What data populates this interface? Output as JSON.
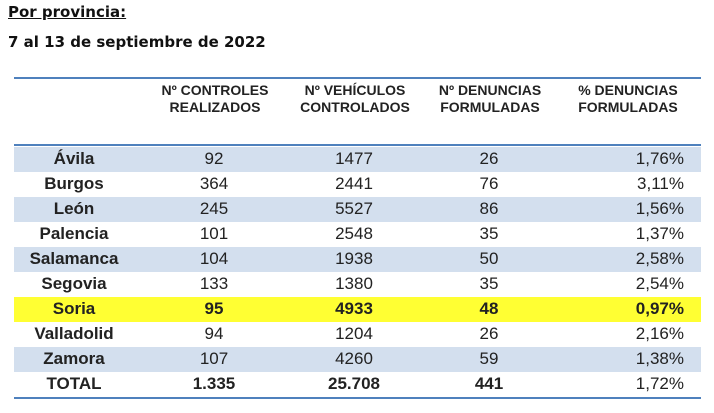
{
  "heading": "Por provincia:",
  "subheading": "7 al 13 de septiembre de 2022",
  "columns": [
    {
      "line1": "Nº CONTROLES",
      "line2": "REALIZADOS"
    },
    {
      "line1": "Nº VEHÍCULOS",
      "line2": "CONTROLADOS"
    },
    {
      "line1": "Nº DENUNCIAS",
      "line2": "FORMULADAS"
    },
    {
      "line1": "% DENUNCIAS",
      "line2": "FORMULADAS"
    }
  ],
  "rows": [
    {
      "province": "Ávila",
      "controles": "92",
      "vehiculos": "1477",
      "denuncias": "26",
      "porcentaje": "1,76%"
    },
    {
      "province": "Burgos",
      "controles": "364",
      "vehiculos": "2441",
      "denuncias": "76",
      "porcentaje": "3,11%"
    },
    {
      "province": "León",
      "controles": "245",
      "vehiculos": "5527",
      "denuncias": "86",
      "porcentaje": "1,56%"
    },
    {
      "province": "Palencia",
      "controles": "101",
      "vehiculos": "2548",
      "denuncias": "35",
      "porcentaje": "1,37%"
    },
    {
      "province": "Salamanca",
      "controles": "104",
      "vehiculos": "1938",
      "denuncias": "50",
      "porcentaje": "2,58%"
    },
    {
      "province": "Segovia",
      "controles": "133",
      "vehiculos": "1380",
      "denuncias": "35",
      "porcentaje": "2,54%"
    },
    {
      "province": "Soria",
      "controles": "95",
      "vehiculos": "4933",
      "denuncias": "48",
      "porcentaje": "0,97%"
    },
    {
      "province": "Valladolid",
      "controles": "94",
      "vehiculos": "1204",
      "denuncias": "26",
      "porcentaje": "2,16%"
    },
    {
      "province": "Zamora",
      "controles": "107",
      "vehiculos": "4260",
      "denuncias": "59",
      "porcentaje": "1,38%"
    }
  ],
  "total": {
    "label": "TOTAL",
    "controles": "1.335",
    "vehiculos": "25.708",
    "denuncias": "441",
    "porcentaje": "1,72%"
  },
  "colors": {
    "rule": "#4f81bd",
    "band": "#d3dfee",
    "highlight": "#ffff33"
  },
  "highlighted_row": "Soria"
}
